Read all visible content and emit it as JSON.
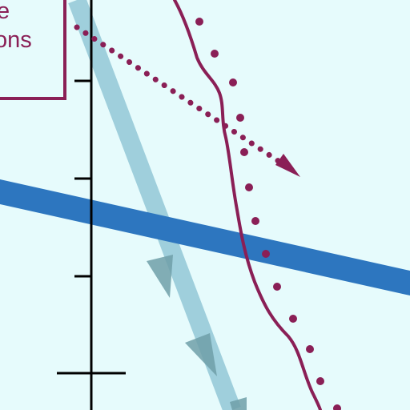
{
  "legend": {
    "line1": "e",
    "line2": "ons"
  },
  "colors": {
    "background": "#e6fbfc",
    "maroon": "#8a1f56",
    "blue_band": "#2d76bf",
    "light_blue_arrow": "#9fcfdc",
    "arrow_head_fill": "#6f9fa8",
    "axis": "#000000"
  }
}
